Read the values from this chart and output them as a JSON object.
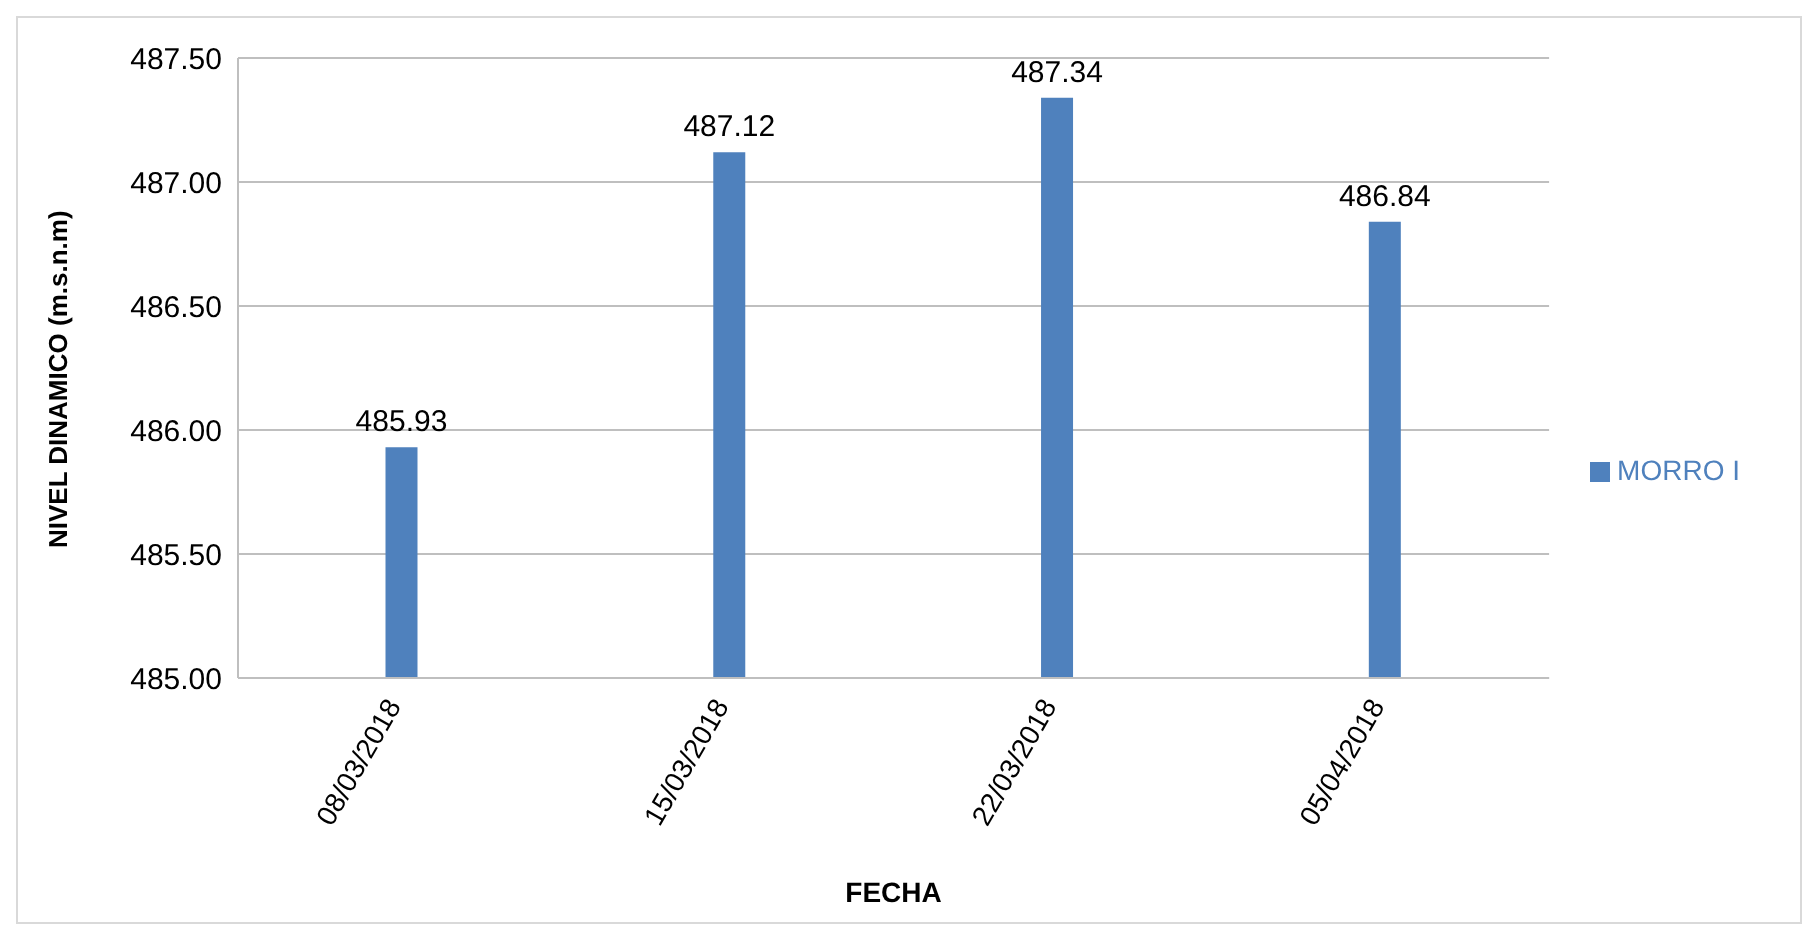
{
  "chart_data": {
    "type": "bar",
    "xlabel": "FECHA",
    "ylabel": "NIVEL DINAMICO (m.s.n.m)",
    "categories": [
      "08/03/2018",
      "15/03/2018",
      "22/03/2018",
      "05/04/2018"
    ],
    "series": [
      {
        "name": "MORRO I",
        "color": "#4f81bd",
        "values": [
          485.93,
          487.12,
          487.34,
          486.84
        ]
      }
    ],
    "ylim": [
      485,
      487.5
    ],
    "yticks": [
      {
        "value": 485,
        "label": "485.00"
      },
      {
        "value": 485.5,
        "label": "485.50"
      },
      {
        "value": 486,
        "label": "486.00"
      },
      {
        "value": 486.5,
        "label": "486.50"
      },
      {
        "value": 487,
        "label": "487.00"
      },
      {
        "value": 487.5,
        "label": "487.50"
      }
    ],
    "grid": "y",
    "legend": "right",
    "data_labels": true
  }
}
